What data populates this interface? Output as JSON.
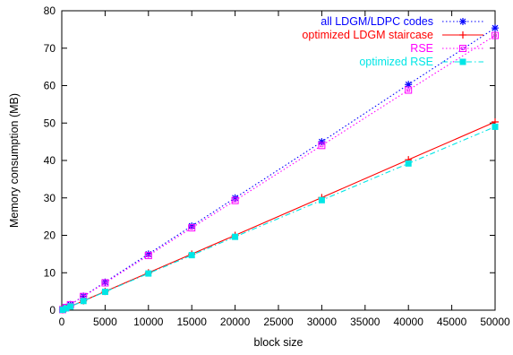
{
  "chart_data": {
    "type": "line",
    "title": "",
    "xlabel": "block size",
    "ylabel": "Memory consumption (MB)",
    "xlim": [
      0,
      50000
    ],
    "ylim": [
      0,
      80
    ],
    "x_ticks": [
      0,
      5000,
      10000,
      15000,
      20000,
      25000,
      30000,
      35000,
      40000,
      45000,
      50000
    ],
    "y_ticks": [
      0,
      10,
      20,
      30,
      40,
      50,
      60,
      70,
      80
    ],
    "grid": false,
    "legend_position": "top-right",
    "series": [
      {
        "name": "all LDGM/LDPC codes",
        "color": "#0000ff",
        "line_style": "dotted",
        "marker": "asterisk",
        "x": [
          100,
          500,
          1000,
          2500,
          5000,
          10000,
          15000,
          20000,
          30000,
          40000,
          50000
        ],
        "y": [
          0.15,
          0.75,
          1.5,
          3.75,
          7.5,
          15,
          22.5,
          30,
          45,
          60.3,
          75.4
        ]
      },
      {
        "name": "optimized LDGM staircase",
        "color": "#ff0000",
        "line_style": "solid",
        "marker": "plus",
        "x": [
          100,
          500,
          1000,
          2500,
          5000,
          10000,
          15000,
          20000,
          30000,
          40000,
          50000
        ],
        "y": [
          0.1,
          0.5,
          1.0,
          2.5,
          5.0,
          10,
          15,
          20,
          30.1,
          40.2,
          50.3
        ]
      },
      {
        "name": "RSE",
        "color": "#ff00ff",
        "line_style": "dotted",
        "marker": "open-square",
        "x": [
          100,
          500,
          1000,
          2500,
          5000,
          10000,
          15000,
          20000,
          30000,
          40000,
          50000
        ],
        "y": [
          0.15,
          0.73,
          1.46,
          3.66,
          7.3,
          14.6,
          22,
          29.3,
          44,
          58.8,
          73.4
        ]
      },
      {
        "name": "optimized RSE",
        "color": "#00e6e6",
        "line_style": "dash-dot",
        "marker": "filled-square",
        "x": [
          100,
          500,
          1000,
          2500,
          5000,
          10000,
          15000,
          20000,
          30000,
          40000,
          50000
        ],
        "y": [
          0.1,
          0.49,
          0.98,
          2.45,
          4.9,
          9.8,
          14.7,
          19.6,
          29.4,
          39.2,
          49
        ]
      }
    ]
  }
}
